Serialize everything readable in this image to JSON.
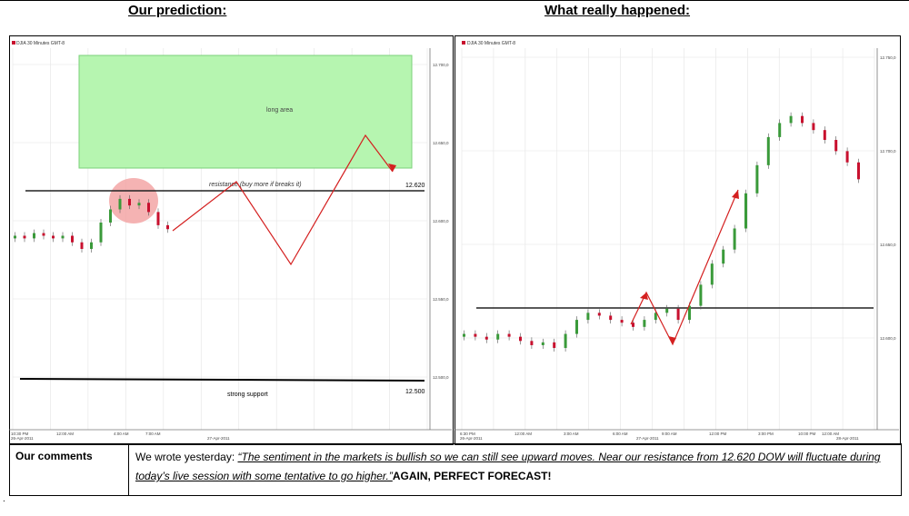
{
  "headers": {
    "left": "Our prediction:",
    "right": "What really happened:"
  },
  "left_chart": {
    "instrument": "DJIA 30 Minutes GMT-8",
    "y_ticks": [
      "12.700,0",
      "12.650,0",
      "12.600,0",
      "12.550,0",
      "12.500,0"
    ],
    "x_ticks": [
      "10:30 PM",
      "12:00 AM",
      "4:00 AM",
      "7:00 AM"
    ],
    "x_dates": [
      "26-Apr-2011",
      "27-Apr-2011"
    ],
    "long_area_label": "long area",
    "resistance_label": "resistance (buy more if breaks it)",
    "resistance_value": "12.620",
    "support_label": "strong support",
    "support_value": "12.500",
    "colors": {
      "zone": "#b6f5b0",
      "zone_border": "#7bd17a",
      "circle": "#f3a0a0",
      "arrow": "#d42020",
      "up": "#3a9a3a",
      "down": "#c8102e"
    }
  },
  "right_chart": {
    "instrument": "DJIA 30 Minutes GMT-8",
    "y_ticks": [
      "12.750,0",
      "12.700,0",
      "12.650,0",
      "12.600,0"
    ],
    "x_ticks": [
      "6:30 PM",
      "12:00 AM",
      "3:00 AM",
      "6:00 AM",
      "9:00 AM",
      "12:00 PM",
      "3:00 PM",
      "10:00 PM",
      "12:00 AM"
    ],
    "x_dates": [
      "26-Apr-2011",
      "27-Apr-2011",
      "28-Apr-2011"
    ],
    "colors": {
      "arrow": "#d42020",
      "up": "#3a9a3a",
      "down": "#c8102e"
    }
  },
  "comments": {
    "label": "Our comments",
    "intro": "We wrote yesterday: ",
    "quote": "“The sentiment in the markets is bullish so we can still see upward moves. Near our resistance from 12.620 DOW will fluctuate during today’s live session with some tentative to go higher.”",
    "conclusion": "AGAIN, PERFECT FORECAST!"
  },
  "chart_data": [
    {
      "type": "line",
      "title": "Our prediction:",
      "ylim": [
        12480,
        12720
      ],
      "resistance": 12620,
      "support": 12500,
      "series": [
        {
          "name": "DJIA 30 Minutes GMT-8",
          "values": [
            12590,
            12588,
            12592,
            12590,
            12588,
            12590,
            12585,
            12580,
            12585,
            12600,
            12610,
            12618,
            12613,
            12615,
            12608,
            12598,
            12595
          ]
        }
      ],
      "prediction_path": [
        12597,
        12625,
        12580,
        12670,
        12650
      ],
      "long_area": [
        12640,
        12710
      ]
    },
    {
      "type": "line",
      "title": "What really happened:",
      "ylim": [
        12560,
        12770
      ],
      "resistance": 12615,
      "series": [
        {
          "name": "DJIA 30 Minutes GMT-8",
          "values": [
            12590,
            12588,
            12586,
            12590,
            12588,
            12585,
            12582,
            12584,
            12580,
            12590,
            12600,
            12605,
            12603,
            12600,
            12598,
            12595,
            12600,
            12605,
            12608,
            12600,
            12610,
            12625,
            12640,
            12650,
            12665,
            12690,
            12710,
            12730,
            12740,
            12745,
            12740,
            12735,
            12728,
            12720,
            12712,
            12700
          ]
        }
      ]
    }
  ]
}
